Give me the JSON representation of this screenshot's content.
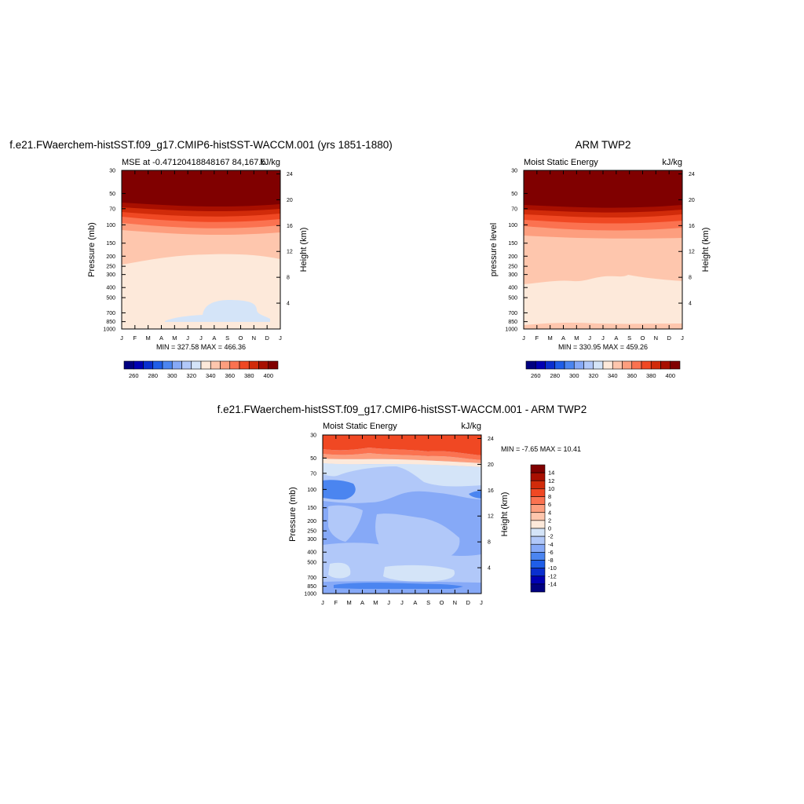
{
  "colors": {
    "levels14": [
      "#000080",
      "#0000b3",
      "#0a2fcf",
      "#1f5ee8",
      "#4b85f0",
      "#86a9f7",
      "#b1c8f9",
      "#d4e4f8",
      "#fde9da",
      "#fec6ad",
      "#fd9e7e",
      "#fb7250",
      "#f04823",
      "#d12b0a",
      "#a80f00",
      "#800000"
    ],
    "diff16": [
      "#000080",
      "#0000b3",
      "#0a2fcf",
      "#1f5ee8",
      "#4b85f0",
      "#86a9f7",
      "#b1c8f9",
      "#d4e4f8",
      "#fde9da",
      "#fec6ad",
      "#fd9e7e",
      "#fb7250",
      "#f04823",
      "#d12b0a",
      "#a80f00",
      "#800000"
    ]
  },
  "month_labels": [
    "J",
    "F",
    "M",
    "A",
    "M",
    "J",
    "J",
    "A",
    "S",
    "O",
    "N",
    "D",
    "J"
  ],
  "panels": {
    "model": {
      "title": "f.e21.FWaerchem-histSST.f09_g17.CMIP6-histSST-WACCM.001 (yrs 1851-1880)",
      "left_string": "MSE at -0.47120418848167 84,167.5",
      "right_string": "kJ/kg",
      "ylabel": "Pressure (mb)",
      "y2label": "Height (km)",
      "minmax": "MIN = 327.58 MAX = 466.36"
    },
    "obs": {
      "title": "ARM TWP2",
      "left_string": "Moist Static Energy",
      "right_string": "kJ/kg",
      "ylabel": "pressure level",
      "y2label": "Height (km)",
      "minmax": "MIN = 330.95 MAX = 459.26"
    },
    "diff": {
      "title": "f.e21.FWaerchem-histSST.f09_g17.CMIP6-histSST-WACCM.001 - ARM TWP2",
      "left_string": "Moist Static Energy",
      "right_string": "kJ/kg",
      "ylabel": "Pressure (mb)",
      "y2label": "Height (km)",
      "minmax": "MIN =  -7.65 MAX =  10.41"
    }
  },
  "chart_data": [
    {
      "type": "heatmap",
      "title": "f.e21.FWaerchem-histSST.f09_g17.CMIP6-histSST-WACCM.001 (yrs 1851-1880)",
      "subtitle": "MSE at -0.47120418848167 84,167.5",
      "units": "kJ/kg",
      "x": [
        "J",
        "F",
        "M",
        "A",
        "M",
        "J",
        "J",
        "A",
        "S",
        "O",
        "N",
        "D",
        "J"
      ],
      "ylabel": "Pressure (mb)",
      "yticks": [
        30,
        50,
        70,
        100,
        150,
        200,
        250,
        300,
        400,
        500,
        700,
        850,
        1000
      ],
      "y2label": "Height (km)",
      "y2ticks": [
        4,
        8,
        12,
        16,
        20,
        24
      ],
      "min": 327.58,
      "max": 466.36,
      "colorbar_ticks": [
        260,
        280,
        300,
        320,
        340,
        360,
        380,
        400
      ]
    },
    {
      "type": "heatmap",
      "title": "ARM TWP2",
      "subtitle": "Moist Static Energy",
      "units": "kJ/kg",
      "x": [
        "J",
        "F",
        "M",
        "A",
        "M",
        "J",
        "J",
        "A",
        "S",
        "O",
        "N",
        "D",
        "J"
      ],
      "ylabel": "pressure level",
      "yticks": [
        30,
        50,
        70,
        100,
        150,
        200,
        250,
        300,
        400,
        500,
        700,
        850,
        1000
      ],
      "y2label": "Height (km)",
      "y2ticks": [
        4,
        8,
        12,
        16,
        20,
        24
      ],
      "min": 330.95,
      "max": 459.26,
      "colorbar_ticks": [
        260,
        280,
        300,
        320,
        340,
        360,
        380,
        400
      ]
    },
    {
      "type": "heatmap",
      "title": "f.e21.FWaerchem-histSST.f09_g17.CMIP6-histSST-WACCM.001 - ARM TWP2",
      "subtitle": "Moist Static Energy",
      "units": "kJ/kg",
      "x": [
        "J",
        "F",
        "M",
        "A",
        "M",
        "J",
        "J",
        "A",
        "S",
        "O",
        "N",
        "D",
        "J"
      ],
      "ylabel": "Pressure (mb)",
      "yticks": [
        30,
        50,
        70,
        100,
        150,
        200,
        250,
        300,
        400,
        500,
        700,
        850,
        1000
      ],
      "y2label": "Height (km)",
      "y2ticks": [
        4,
        8,
        12,
        16,
        20,
        24
      ],
      "min": -7.65,
      "max": 10.41,
      "colorbar_ticks": [
        14,
        12,
        10,
        8,
        6,
        4,
        2,
        0,
        -2,
        -4,
        -6,
        -8,
        -10,
        -12,
        -14
      ]
    }
  ]
}
